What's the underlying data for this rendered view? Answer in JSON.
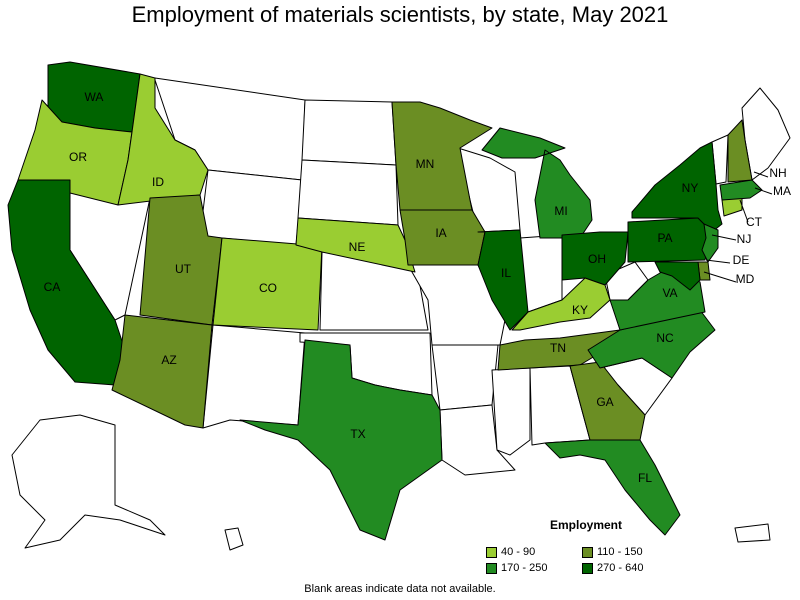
{
  "title": "Employment of materials scientists, by state, May 2021",
  "footnote": "Blank areas indicate data not available.",
  "legend": {
    "title": "Employment",
    "bins": [
      {
        "label": "40 - 90",
        "color": "#9acd32"
      },
      {
        "label": "110 - 150",
        "color": "#6b8e23"
      },
      {
        "label": "170 - 250",
        "color": "#228b22"
      },
      {
        "label": "270 - 640",
        "color": "#006400"
      }
    ]
  },
  "states": [
    {
      "abbr": "WA",
      "label": "WA",
      "bin": 3
    },
    {
      "abbr": "OR",
      "label": "OR",
      "bin": 0
    },
    {
      "abbr": "ID",
      "label": "ID",
      "bin": 0
    },
    {
      "abbr": "CA",
      "label": "CA",
      "bin": 3
    },
    {
      "abbr": "UT",
      "label": "UT",
      "bin": 1
    },
    {
      "abbr": "AZ",
      "label": "AZ",
      "bin": 1
    },
    {
      "abbr": "CO",
      "label": "CO",
      "bin": 0
    },
    {
      "abbr": "NE",
      "label": "NE",
      "bin": 0
    },
    {
      "abbr": "TX",
      "label": "TX",
      "bin": 2
    },
    {
      "abbr": "MN",
      "label": "MN",
      "bin": 1
    },
    {
      "abbr": "IA",
      "label": "IA",
      "bin": 1
    },
    {
      "abbr": "IL",
      "label": "IL",
      "bin": 3
    },
    {
      "abbr": "MI",
      "label": "MI",
      "bin": 2
    },
    {
      "abbr": "OH",
      "label": "OH",
      "bin": 3
    },
    {
      "abbr": "KY",
      "label": "KY",
      "bin": 0
    },
    {
      "abbr": "TN",
      "label": "TN",
      "bin": 1
    },
    {
      "abbr": "GA",
      "label": "GA",
      "bin": 1
    },
    {
      "abbr": "FL",
      "label": "FL",
      "bin": 2
    },
    {
      "abbr": "NC",
      "label": "NC",
      "bin": 2
    },
    {
      "abbr": "VA",
      "label": "VA",
      "bin": 2
    },
    {
      "abbr": "PA",
      "label": "PA",
      "bin": 3
    },
    {
      "abbr": "NY",
      "label": "NY",
      "bin": 3
    },
    {
      "abbr": "NJ",
      "label": "NJ",
      "bin": 2
    },
    {
      "abbr": "DE",
      "label": "DE",
      "bin": 1
    },
    {
      "abbr": "MD",
      "label": "MD",
      "bin": 3
    },
    {
      "abbr": "CT",
      "label": "CT",
      "bin": 0
    },
    {
      "abbr": "MA",
      "label": "MA",
      "bin": 2
    },
    {
      "abbr": "NH",
      "label": "NH",
      "bin": 1
    }
  ]
}
